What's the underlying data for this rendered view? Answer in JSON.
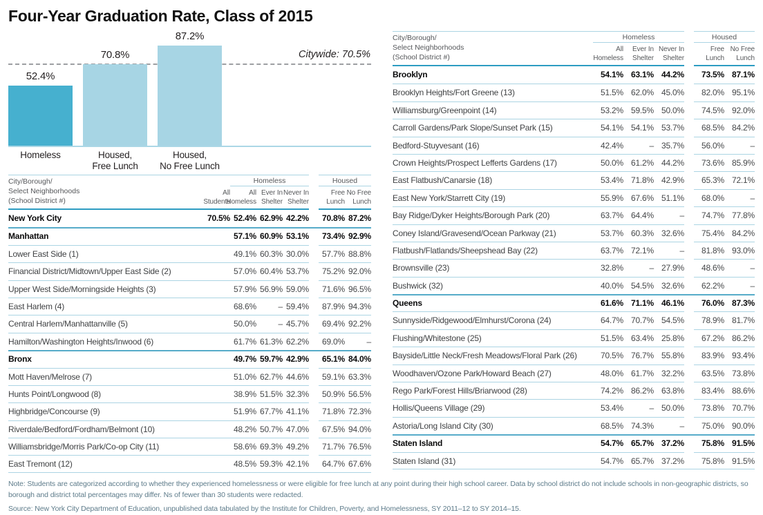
{
  "title": "Four-Year Graduation Rate, Class of 2015",
  "chart_data": {
    "type": "bar",
    "categories": [
      "Homeless",
      "Housed,\nFree Lunch",
      "Housed,\nNo Free Lunch"
    ],
    "values": [
      52.4,
      70.8,
      87.2
    ],
    "value_labels": [
      "52.4%",
      "70.8%",
      "87.2%"
    ],
    "colors": [
      "#46b0cf",
      "#a7d5e4",
      "#a7d5e4"
    ],
    "reference_line": {
      "label": "Citywide: 70.5%",
      "value": 70.5
    },
    "ylim": [
      0,
      100
    ],
    "grid": false,
    "legend": "none"
  },
  "tables": [
    {
      "corner_label": "City/Borough/\nSelect Neighborhoods\n(School District #)",
      "groups": [
        {
          "label": "Homeless",
          "cols": 3
        },
        {
          "label": "Housed",
          "cols": 2
        }
      ],
      "columns": [
        "All\nStudents",
        "All\nHomeless",
        "Ever In\nShelter",
        "Never In\nShelter",
        "Free\nLunch",
        "No Free\nLunch"
      ],
      "rows": [
        {
          "name": "New York City",
          "bold": true,
          "values": [
            "70.5%",
            "52.4%",
            "62.9%",
            "42.2%",
            "70.8%",
            "87.2%"
          ]
        },
        {
          "name": "Manhattan",
          "bold": true,
          "values": [
            "",
            "57.1%",
            "60.9%",
            "53.1%",
            "73.4%",
            "92.9%"
          ]
        },
        {
          "name": "Lower East Side (1)",
          "bold": false,
          "values": [
            "",
            "49.1%",
            "60.3%",
            "30.0%",
            "57.7%",
            "88.8%"
          ]
        },
        {
          "name": "Financial District/Midtown/Upper East Side (2)",
          "bold": false,
          "values": [
            "",
            "57.0%",
            "60.4%",
            "53.7%",
            "75.2%",
            "92.0%"
          ]
        },
        {
          "name": "Upper West Side/Morningside Heights (3)",
          "bold": false,
          "values": [
            "",
            "57.9%",
            "56.9%",
            "59.0%",
            "71.6%",
            "96.5%"
          ]
        },
        {
          "name": "East Harlem (4)",
          "bold": false,
          "values": [
            "",
            "68.6%",
            "–",
            "59.4%",
            "87.9%",
            "94.3%"
          ]
        },
        {
          "name": "Central Harlem/Manhattanville (5)",
          "bold": false,
          "values": [
            "",
            "50.0%",
            "–",
            "45.7%",
            "69.4%",
            "92.2%"
          ]
        },
        {
          "name": "Hamilton/Washington Heights/Inwood (6)",
          "bold": false,
          "values": [
            "",
            "61.7%",
            "61.3%",
            "62.2%",
            "69.0%",
            "–"
          ]
        },
        {
          "name": "Bronx",
          "bold": true,
          "values": [
            "",
            "49.7%",
            "59.7%",
            "42.9%",
            "65.1%",
            "84.0%"
          ]
        },
        {
          "name": "Mott Haven/Melrose (7)",
          "bold": false,
          "values": [
            "",
            "51.0%",
            "62.7%",
            "44.6%",
            "59.1%",
            "63.3%"
          ]
        },
        {
          "name": "Hunts Point/Longwood (8)",
          "bold": false,
          "values": [
            "",
            "38.9%",
            "51.5%",
            "32.3%",
            "50.9%",
            "56.5%"
          ]
        },
        {
          "name": "Highbridge/Concourse (9)",
          "bold": false,
          "values": [
            "",
            "51.9%",
            "67.7%",
            "41.1%",
            "71.8%",
            "72.3%"
          ]
        },
        {
          "name": "Riverdale/Bedford/Fordham/Belmont (10)",
          "bold": false,
          "values": [
            "",
            "48.2%",
            "50.7%",
            "47.0%",
            "67.5%",
            "94.0%"
          ]
        },
        {
          "name": "Williamsbridge/Morris Park/Co-op City (11)",
          "bold": false,
          "values": [
            "",
            "58.6%",
            "69.3%",
            "49.2%",
            "71.7%",
            "76.5%"
          ]
        },
        {
          "name": "East Tremont (12)",
          "bold": false,
          "values": [
            "",
            "48.5%",
            "59.3%",
            "42.1%",
            "64.7%",
            "67.6%"
          ]
        }
      ]
    },
    {
      "corner_label": "City/Borough/\nSelect Neighborhoods\n(School District #)",
      "groups": [
        {
          "label": "Homeless",
          "cols": 3
        },
        {
          "label": "Housed",
          "cols": 2
        }
      ],
      "columns": [
        "All\nHomeless",
        "Ever In\nShelter",
        "Never In\nShelter",
        "Free\nLunch",
        "No Free\nLunch"
      ],
      "rows": [
        {
          "name": "Brooklyn",
          "bold": true,
          "values": [
            "54.1%",
            "63.1%",
            "44.2%",
            "73.5%",
            "87.1%"
          ]
        },
        {
          "name": "Brooklyn Heights/Fort Greene (13)",
          "bold": false,
          "values": [
            "51.5%",
            "62.0%",
            "45.0%",
            "82.0%",
            "95.1%"
          ]
        },
        {
          "name": "Williamsburg/Greenpoint (14)",
          "bold": false,
          "values": [
            "53.2%",
            "59.5%",
            "50.0%",
            "74.5%",
            "92.0%"
          ]
        },
        {
          "name": "Carroll Gardens/Park Slope/Sunset Park (15)",
          "bold": false,
          "values": [
            "54.1%",
            "54.1%",
            "53.7%",
            "68.5%",
            "84.2%"
          ]
        },
        {
          "name": "Bedford-Stuyvesant (16)",
          "bold": false,
          "values": [
            "42.4%",
            "–",
            "35.7%",
            "56.0%",
            "–"
          ]
        },
        {
          "name": "Crown Heights/Prospect Lefferts Gardens (17)",
          "bold": false,
          "values": [
            "50.0%",
            "61.2%",
            "44.2%",
            "73.6%",
            "85.9%"
          ]
        },
        {
          "name": "East Flatbush/Canarsie (18)",
          "bold": false,
          "values": [
            "53.4%",
            "71.8%",
            "42.9%",
            "65.3%",
            "72.1%"
          ]
        },
        {
          "name": "East New York/Starrett City (19)",
          "bold": false,
          "values": [
            "55.9%",
            "67.6%",
            "51.1%",
            "68.0%",
            "–"
          ]
        },
        {
          "name": "Bay Ridge/Dyker Heights/Borough Park (20)",
          "bold": false,
          "values": [
            "63.7%",
            "64.4%",
            "–",
            "74.7%",
            "77.8%"
          ]
        },
        {
          "name": "Coney Island/Gravesend/Ocean Parkway (21)",
          "bold": false,
          "values": [
            "53.7%",
            "60.3%",
            "32.6%",
            "75.4%",
            "84.2%"
          ]
        },
        {
          "name": "Flatbush/Flatlands/Sheepshead Bay (22)",
          "bold": false,
          "values": [
            "63.7%",
            "72.1%",
            "–",
            "81.8%",
            "93.0%"
          ]
        },
        {
          "name": "Brownsville (23)",
          "bold": false,
          "values": [
            "32.8%",
            "–",
            "27.9%",
            "48.6%",
            "–"
          ]
        },
        {
          "name": "Bushwick (32)",
          "bold": false,
          "values": [
            "40.0%",
            "54.5%",
            "32.6%",
            "62.2%",
            "–"
          ]
        },
        {
          "name": "Queens",
          "bold": true,
          "values": [
            "61.6%",
            "71.1%",
            "46.1%",
            "76.0%",
            "87.3%"
          ]
        },
        {
          "name": "Sunnyside/Ridgewood/Elmhurst/Corona (24)",
          "bold": false,
          "values": [
            "64.7%",
            "70.7%",
            "54.5%",
            "78.9%",
            "81.7%"
          ]
        },
        {
          "name": "Flushing/Whitestone (25)",
          "bold": false,
          "values": [
            "51.5%",
            "63.4%",
            "25.8%",
            "67.2%",
            "86.2%"
          ]
        },
        {
          "name": "Bayside/Little Neck/Fresh Meadows/Floral Park (26)",
          "bold": false,
          "values": [
            "70.5%",
            "76.7%",
            "55.8%",
            "83.9%",
            "93.4%"
          ]
        },
        {
          "name": "Woodhaven/Ozone Park/Howard Beach (27)",
          "bold": false,
          "values": [
            "48.0%",
            "61.7%",
            "32.2%",
            "63.5%",
            "73.8%"
          ]
        },
        {
          "name": "Rego Park/Forest Hills/Briarwood (28)",
          "bold": false,
          "values": [
            "74.2%",
            "86.2%",
            "63.8%",
            "83.4%",
            "88.6%"
          ]
        },
        {
          "name": "Hollis/Queens Village (29)",
          "bold": false,
          "values": [
            "53.4%",
            "–",
            "50.0%",
            "73.8%",
            "70.7%"
          ]
        },
        {
          "name": "Astoria/Long Island City (30)",
          "bold": false,
          "values": [
            "68.5%",
            "74.3%",
            "–",
            "75.0%",
            "90.0%"
          ]
        },
        {
          "name": "Staten Island",
          "bold": true,
          "values": [
            "54.7%",
            "65.7%",
            "37.2%",
            "75.8%",
            "91.5%"
          ]
        },
        {
          "name": "Staten Island (31)",
          "bold": false,
          "values": [
            "54.7%",
            "65.7%",
            "37.2%",
            "75.8%",
            "91.5%"
          ]
        }
      ]
    }
  ],
  "notes": {
    "note": "Note: Students are categorized according to whether they experienced homelessness or were eligible for free lunch at any point during their high school career. Data by school district do not include schools in non-geographic districts, so borough and district total percentages may differ. Ns of fewer than 30 students were redacted.",
    "source": "Source: New York City Department of Education, unpublished data tabulated by the Institute for Children, Poverty, and Homelessness, SY 2011–12 to SY 2014–15."
  },
  "colors": {
    "bar_dark": "#46b0cf",
    "bar_light": "#a7d5e4",
    "rule_light": "#abd4e3",
    "rule_strong": "#2d9cc2",
    "dashed_line": "#9d9fa2",
    "note_text": "#5d7b8a"
  }
}
